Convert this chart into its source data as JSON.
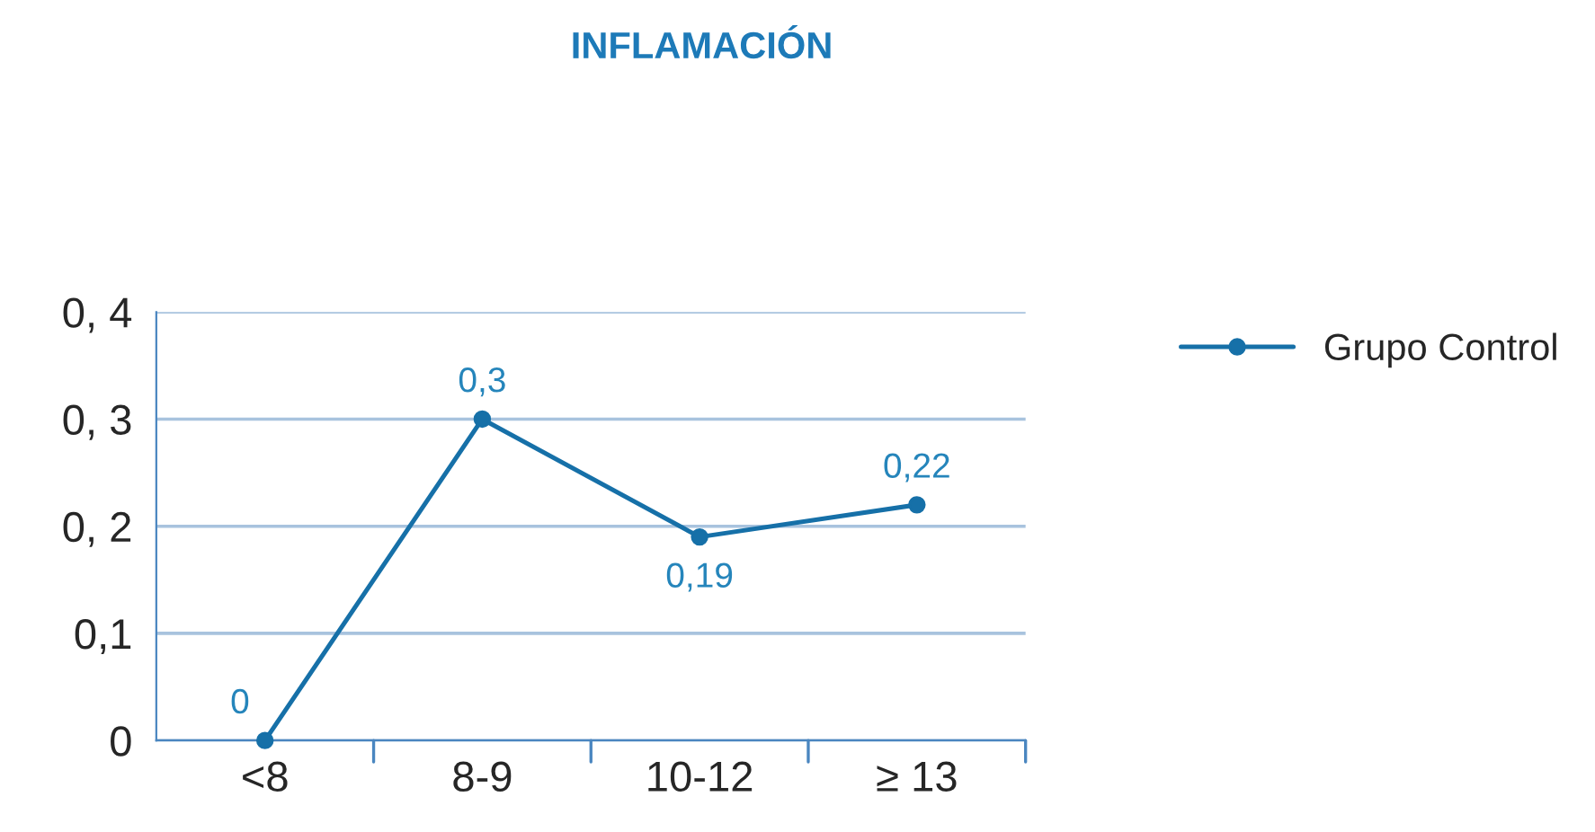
{
  "chart_data": {
    "type": "line",
    "title": "INFLAMACIÓN",
    "categories": [
      "<8",
      "8-9",
      "10-12",
      "≥ 13"
    ],
    "series": [
      {
        "name": "Grupo Control",
        "color": "#1670a8",
        "values": [
          0,
          0.3,
          0.19,
          0.22
        ],
        "value_labels": [
          "0",
          "0,3",
          "0,19",
          "0,22"
        ]
      }
    ],
    "ylim": [
      0,
      0.4
    ],
    "yticks": [
      {
        "value": 0,
        "label": "0"
      },
      {
        "value": 0.1,
        "label": "0,1"
      },
      {
        "value": 0.2,
        "label": "0, 2"
      },
      {
        "value": 0.3,
        "label": "0, 3"
      },
      {
        "value": 0.4,
        "label": "0, 4"
      }
    ],
    "grid": "y",
    "legend": "top right",
    "marker": "circle",
    "line_style": "solid"
  }
}
